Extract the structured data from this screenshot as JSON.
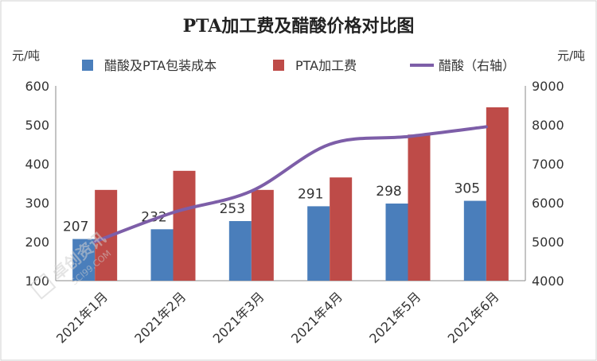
{
  "chart_data": {
    "type": "bar",
    "title": "PTA加工费及醋酸价格对比图",
    "ylabel_left": "元/吨",
    "ylabel_right": "元/吨",
    "categories": [
      "2021年1月",
      "2021年2月",
      "2021年3月",
      "2021年4月",
      "2021年5月",
      "2021年6月"
    ],
    "ylim_left": [
      100,
      600
    ],
    "yticks_left": [
      100,
      200,
      300,
      400,
      500,
      600
    ],
    "ylim_right": [
      4000,
      9000
    ],
    "yticks_right": [
      4000,
      5000,
      6000,
      7000,
      8000,
      9000
    ],
    "series": [
      {
        "name": "醋酸及PTA包装成本",
        "type": "bar",
        "axis": "left",
        "color": "#4a7ebb",
        "values": [
          207,
          232,
          253,
          291,
          298,
          305
        ],
        "labels": [
          "207",
          "232",
          "253",
          "291",
          "298",
          "305"
        ]
      },
      {
        "name": "PTA加工费",
        "type": "bar",
        "axis": "left",
        "color": "#be4b48",
        "values": [
          333,
          382,
          333,
          365,
          475,
          545
        ]
      },
      {
        "name": "醋酸（右轴）",
        "type": "line",
        "axis": "right",
        "color": "#7d5ea8",
        "values": [
          5000,
          5750,
          6300,
          7500,
          7700,
          7950
        ]
      }
    ],
    "grid": false,
    "legend": "top-center"
  },
  "watermark": {
    "text": "卓创资讯",
    "sub": "SCI99.COM"
  }
}
